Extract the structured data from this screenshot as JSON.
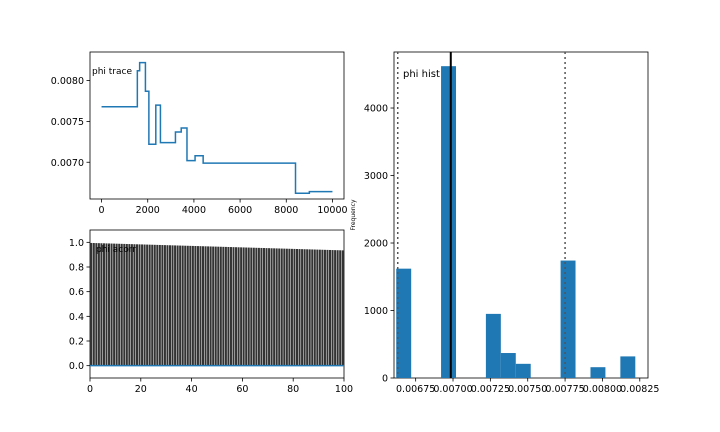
{
  "colors": {
    "series": "#1f77b4",
    "bars_dark": "#333333",
    "axis": "#000000",
    "ref_line": "#000000",
    "ci_line": "#555555"
  },
  "chart_data": [
    {
      "id": "trace",
      "type": "line",
      "annotation": "phi trace",
      "xlim": [
        -500,
        10500
      ],
      "ylim": [
        0.00655,
        0.00835
      ],
      "xticks": [
        0,
        2000,
        4000,
        6000,
        8000,
        10000
      ],
      "yticks": [
        0.007,
        0.0075,
        0.008
      ],
      "xtick_labels": [
        "0",
        "2000",
        "4000",
        "6000",
        "8000",
        "10000"
      ],
      "ytick_labels": [
        "0.0070",
        "0.0075",
        "0.0080"
      ],
      "step_x": [
        0,
        1550,
        1550,
        1650,
        1650,
        1900,
        1900,
        2050,
        2050,
        2350,
        2350,
        2550,
        2550,
        3200,
        3200,
        3450,
        3450,
        3700,
        3700,
        4050,
        4050,
        4400,
        4400,
        8400,
        8400,
        9000,
        9000,
        10000
      ],
      "step_y": [
        0.00768,
        0.00768,
        0.00812,
        0.00812,
        0.00822,
        0.00822,
        0.00787,
        0.00787,
        0.00722,
        0.00722,
        0.0077,
        0.0077,
        0.00724,
        0.00724,
        0.00737,
        0.00737,
        0.00742,
        0.00742,
        0.00702,
        0.00702,
        0.00708,
        0.00708,
        0.00699,
        0.00699,
        0.00662,
        0.00662,
        0.00664,
        0.00664
      ]
    },
    {
      "id": "acf",
      "type": "bar",
      "annotation": "phi acorr",
      "xlim": [
        0,
        100
      ],
      "ylim": [
        -0.1,
        1.1
      ],
      "xticks": [
        0,
        20,
        40,
        60,
        80,
        100
      ],
      "yticks": [
        0.0,
        0.2,
        0.4,
        0.6,
        0.8,
        1.0
      ],
      "xtick_labels": [
        "0",
        "20",
        "40",
        "60",
        "80",
        "100"
      ],
      "ytick_labels": [
        "0.0",
        "0.2",
        "0.4",
        "0.6",
        "0.8",
        "1.0"
      ],
      "lags_start": 1,
      "lags_end": 100,
      "value_first": 0.995,
      "value_last": 0.935,
      "baseline": 0.0
    },
    {
      "id": "hist",
      "type": "bar",
      "annotation": "phi hist",
      "ylabel": "Frequency",
      "xlim": [
        0.006605,
        0.008305
      ],
      "ylim": [
        0,
        4830
      ],
      "xticks": [
        0.00675,
        0.007,
        0.00725,
        0.0075,
        0.00775,
        0.008,
        0.00825
      ],
      "yticks": [
        0,
        1000,
        2000,
        3000,
        4000
      ],
      "xtick_labels": [
        "0.00675",
        "0.00700",
        "0.00725",
        "0.00750",
        "0.00775",
        "0.00800",
        "0.00825"
      ],
      "ytick_labels": [
        "0",
        "1000",
        "2000",
        "3000",
        "4000"
      ],
      "bin_edges": [
        0.00662,
        0.00672,
        0.00682,
        0.00692,
        0.00702,
        0.00712,
        0.00722,
        0.00732,
        0.00742,
        0.00752,
        0.00762,
        0.00772,
        0.00782,
        0.00792,
        0.00802,
        0.00812,
        0.00822
      ],
      "counts": [
        1620,
        0,
        0,
        4620,
        0,
        0,
        950,
        370,
        210,
        0,
        0,
        1740,
        0,
        160,
        0,
        320
      ],
      "mean_line": 0.006985,
      "ci_lines": [
        0.00663,
        0.00775
      ]
    }
  ]
}
